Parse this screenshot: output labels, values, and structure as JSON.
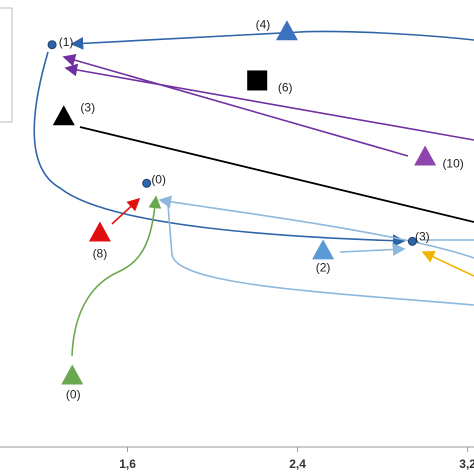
{
  "chart_data": {
    "type": "scatter",
    "xlim": [
      1.0,
      3.23
    ],
    "ylim": [
      0,
      1
    ],
    "xticks": [
      {
        "value": 1.6,
        "label": "1,6"
      },
      {
        "value": 2.4,
        "label": "2,4"
      },
      {
        "value": 3.2,
        "label": "3,2"
      }
    ],
    "points": [
      {
        "label": "(1)",
        "x": 1.245,
        "y": 0.9,
        "marker": "circle",
        "color": "#2e64a8"
      },
      {
        "label": "(4)",
        "x": 2.35,
        "y": 0.93,
        "marker": "triangle",
        "color": "#3a72c0"
      },
      {
        "label": "(6)",
        "x": 2.21,
        "y": 0.82,
        "marker": "square",
        "color": "#000000"
      },
      {
        "label": "(3)",
        "x": 1.3,
        "y": 0.74,
        "marker": "triangle",
        "color": "#000000"
      },
      {
        "label": "(10)",
        "x": 3.0,
        "y": 0.65,
        "marker": "triangle",
        "color": "#8e44ad"
      },
      {
        "label": "(0)",
        "x": 1.69,
        "y": 0.59,
        "marker": "circle",
        "color": "#2e64a8"
      },
      {
        "label": "(8)",
        "x": 1.47,
        "y": 0.48,
        "marker": "triangle",
        "color": "#e01010"
      },
      {
        "label": "(2)",
        "x": 2.52,
        "y": 0.44,
        "marker": "triangle",
        "color": "#5b9bd5"
      },
      {
        "label": "(3)",
        "x": 2.94,
        "y": 0.46,
        "marker": "circle",
        "color": "#2e64a8"
      },
      {
        "label": "(0)",
        "x": 1.34,
        "y": 0.16,
        "marker": "triangle",
        "color": "#6aa84f"
      }
    ]
  }
}
